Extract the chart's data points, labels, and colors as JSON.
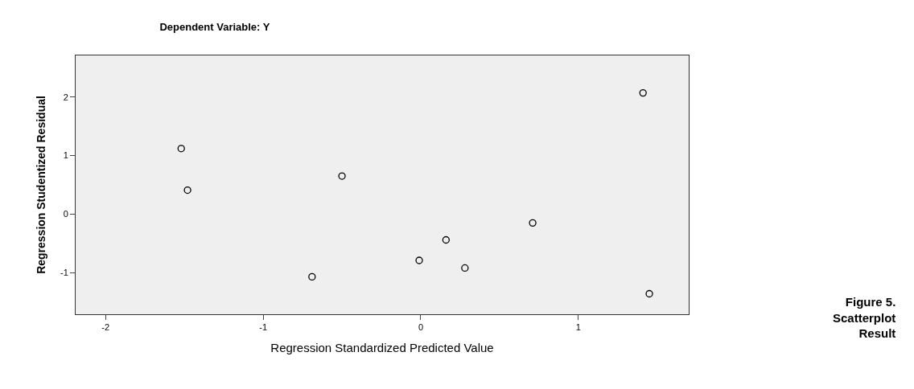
{
  "chart_data": {
    "type": "scatter",
    "title": "Dependent Variable: Y",
    "xlabel": "Regression Standardized Predicted Value",
    "ylabel": "Regression Studentized Residual",
    "annotations": [
      "Figure 5.\nScatterplot\nResult"
    ],
    "x": [
      -1.52,
      -1.48,
      -0.5,
      -0.69,
      1.41,
      0.71,
      0.16,
      -0.01,
      0.28,
      1.45
    ],
    "values": [
      1.12,
      0.41,
      0.65,
      -1.07,
      2.07,
      -0.15,
      -0.44,
      -0.79,
      -0.92,
      -1.36
    ],
    "color": "#000000",
    "marker": "circle",
    "xlim": [
      -2.19,
      1.7
    ],
    "xticks": [
      -2,
      -1,
      0,
      1
    ],
    "ylim": [
      -1.71,
      2.71
    ],
    "yticks": [
      -1,
      0,
      1,
      2
    ],
    "grid": false,
    "legend": false
  }
}
